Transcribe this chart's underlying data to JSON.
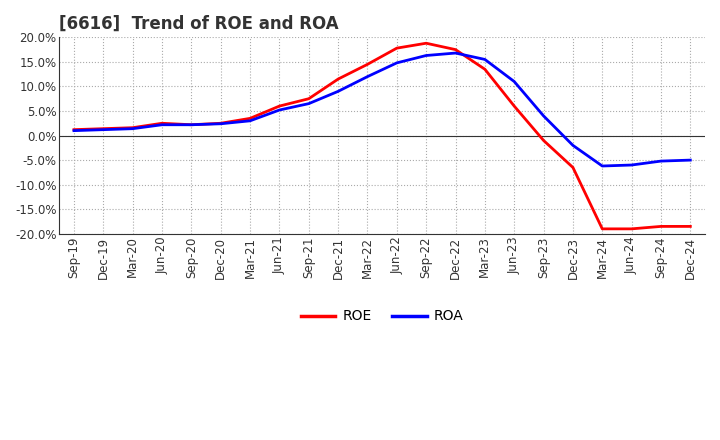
{
  "title": "[6616]  Trend of ROE and ROA",
  "ylim": [
    -0.2,
    0.2
  ],
  "yticks": [
    -0.2,
    -0.15,
    -0.1,
    -0.05,
    0.0,
    0.05,
    0.1,
    0.15,
    0.2
  ],
  "xtick_labels": [
    "Sep-19",
    "Dec-19",
    "Mar-20",
    "Jun-20",
    "Sep-20",
    "Dec-20",
    "Mar-21",
    "Jun-21",
    "Sep-21",
    "Dec-21",
    "Mar-22",
    "Jun-22",
    "Sep-22",
    "Dec-22",
    "Mar-23",
    "Jun-23",
    "Sep-23",
    "Dec-23",
    "Mar-24",
    "Jun-24",
    "Sep-24",
    "Dec-24"
  ],
  "roe_color": "#ff0000",
  "roa_color": "#0000ff",
  "background_color": "#ffffff",
  "grid_color": "#aaaaaa",
  "roe_values": [
    0.012,
    0.014,
    0.016,
    0.025,
    0.022,
    0.025,
    0.035,
    0.06,
    0.075,
    0.115,
    0.145,
    0.178,
    0.188,
    0.175,
    0.135,
    0.06,
    -0.01,
    -0.065,
    -0.19,
    -0.19,
    -0.185,
    -0.185
  ],
  "roa_values": [
    0.01,
    0.012,
    0.014,
    0.022,
    0.022,
    0.024,
    0.03,
    0.052,
    0.065,
    0.09,
    0.12,
    0.148,
    0.163,
    0.168,
    0.155,
    0.11,
    0.04,
    -0.02,
    -0.062,
    -0.06,
    -0.052,
    -0.05
  ],
  "legend_labels": [
    "ROE",
    "ROA"
  ],
  "title_fontsize": 12,
  "tick_fontsize": 8.5,
  "legend_fontsize": 10
}
